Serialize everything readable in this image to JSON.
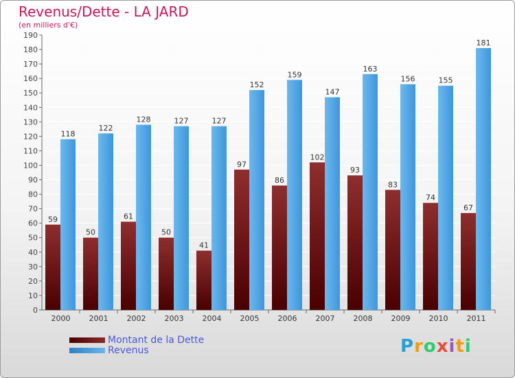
{
  "header": {
    "title": "Revenus/Dette - LA JARD",
    "subtitle": "(en milliers d'€)"
  },
  "legend": {
    "debt_label": "Montant de la Dette",
    "revenue_label": "Revenus"
  },
  "logo": {
    "text": "Proxiti"
  },
  "colors": {
    "debt": "#7a1a1a",
    "revenue": "#4aa3e6",
    "title": "#c2185b",
    "legend_text": "#4a57d6"
  },
  "chart_data": {
    "type": "bar",
    "title": "Revenus/Dette - LA JARD",
    "subtitle": "(en milliers d'€)",
    "categories": [
      "2000",
      "2001",
      "2002",
      "2003",
      "2004",
      "2005",
      "2006",
      "2007",
      "2008",
      "2009",
      "2010",
      "2011"
    ],
    "series": [
      {
        "name": "Montant de la Dette",
        "values": [
          59,
          50,
          61,
          50,
          41,
          97,
          86,
          102,
          93,
          83,
          74,
          67
        ]
      },
      {
        "name": "Revenus",
        "values": [
          118,
          122,
          128,
          127,
          127,
          152,
          159,
          147,
          163,
          156,
          155,
          181
        ]
      }
    ],
    "ylim": [
      0,
      190
    ],
    "ytick_step": 10,
    "grid": true,
    "legend_position": "bottom-left"
  }
}
